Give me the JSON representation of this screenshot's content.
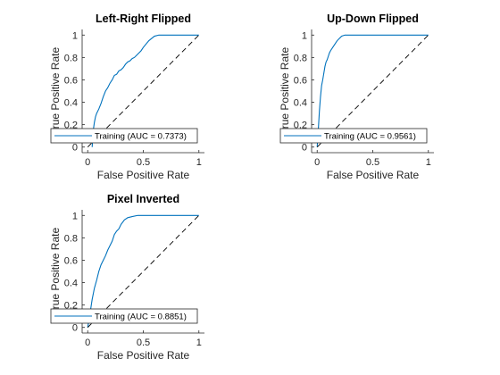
{
  "colors": {
    "roc_line": "#0072bd",
    "chance_line": "#000000",
    "axis": "#262626",
    "background": "#ffffff"
  },
  "chart_data": [
    {
      "type": "line",
      "title": "Left-Right Flipped",
      "xlabel": "False Positive Rate",
      "ylabel": "True Positive Rate",
      "xlim": [
        -0.05,
        1.05
      ],
      "ylim": [
        -0.05,
        1.05
      ],
      "xticks": [
        0,
        0.5,
        1
      ],
      "xtick_labels": [
        "0",
        "0.5",
        "1"
      ],
      "yticks": [
        0,
        0.2,
        0.4,
        0.6,
        0.8,
        1
      ],
      "ytick_labels": [
        "0",
        "0.2",
        "0.4",
        "0.6",
        "0.8",
        "1"
      ],
      "grid": false,
      "legend_position": "bottom",
      "series": [
        {
          "name": "Training (AUC = 0.7373)",
          "style": "solid",
          "x": [
            0.04,
            0.05,
            0.06,
            0.07,
            0.08,
            0.1,
            0.12,
            0.14,
            0.16,
            0.18,
            0.2,
            0.22,
            0.24,
            0.26,
            0.28,
            0.3,
            0.32,
            0.34,
            0.36,
            0.38,
            0.4,
            0.42,
            0.44,
            0.46,
            0.48,
            0.5,
            0.55,
            0.6,
            0.64,
            1.0
          ],
          "y": [
            0.0,
            0.15,
            0.22,
            0.27,
            0.3,
            0.34,
            0.39,
            0.45,
            0.5,
            0.53,
            0.57,
            0.6,
            0.64,
            0.65,
            0.68,
            0.69,
            0.71,
            0.74,
            0.76,
            0.77,
            0.79,
            0.8,
            0.82,
            0.84,
            0.86,
            0.89,
            0.95,
            0.99,
            1.0,
            1.0
          ]
        },
        {
          "style": "dashed",
          "x": [
            0,
            1
          ],
          "y": [
            0,
            1
          ]
        }
      ]
    },
    {
      "type": "line",
      "title": "Up-Down Flipped",
      "xlabel": "False Positive Rate",
      "ylabel": "True Positive Rate",
      "xlim": [
        -0.05,
        1.05
      ],
      "ylim": [
        -0.05,
        1.05
      ],
      "xticks": [
        0,
        0.5,
        1
      ],
      "xtick_labels": [
        "0",
        "0.5",
        "1"
      ],
      "yticks": [
        0,
        0.2,
        0.4,
        0.6,
        0.8,
        1
      ],
      "ytick_labels": [
        "0",
        "0.2",
        "0.4",
        "0.6",
        "0.8",
        "1"
      ],
      "grid": false,
      "legend_position": "bottom",
      "series": [
        {
          "name": "Training (AUC = 0.9561)",
          "style": "solid",
          "x": [
            0.0,
            0.01,
            0.02,
            0.03,
            0.04,
            0.05,
            0.06,
            0.07,
            0.08,
            0.09,
            0.1,
            0.11,
            0.12,
            0.14,
            0.16,
            0.18,
            0.2,
            0.22,
            0.25,
            0.3,
            0.4,
            1.0
          ],
          "y": [
            0.0,
            0.15,
            0.32,
            0.45,
            0.55,
            0.6,
            0.66,
            0.72,
            0.76,
            0.78,
            0.81,
            0.84,
            0.86,
            0.89,
            0.92,
            0.95,
            0.97,
            0.99,
            1.0,
            1.0,
            1.0,
            1.0
          ]
        },
        {
          "style": "dashed",
          "x": [
            0,
            1
          ],
          "y": [
            0,
            1
          ]
        }
      ]
    },
    {
      "type": "line",
      "title": "Pixel Inverted",
      "xlabel": "False Positive Rate",
      "ylabel": "True Positive Rate",
      "xlim": [
        -0.05,
        1.05
      ],
      "ylim": [
        -0.05,
        1.05
      ],
      "xticks": [
        0,
        0.5,
        1
      ],
      "xtick_labels": [
        "0",
        "0.5",
        "1"
      ],
      "yticks": [
        0,
        0.2,
        0.4,
        0.6,
        0.8,
        1
      ],
      "ytick_labels": [
        "0",
        "0.2",
        "0.4",
        "0.6",
        "0.8",
        "1"
      ],
      "grid": false,
      "legend_position": "bottom",
      "series": [
        {
          "name": "Training (AUC = 0.8851)",
          "style": "solid",
          "x": [
            0.0,
            0.02,
            0.04,
            0.06,
            0.08,
            0.1,
            0.12,
            0.14,
            0.16,
            0.18,
            0.2,
            0.22,
            0.24,
            0.26,
            0.28,
            0.3,
            0.33,
            0.36,
            0.4,
            0.45,
            0.5,
            1.0
          ],
          "y": [
            0.0,
            0.12,
            0.25,
            0.35,
            0.42,
            0.5,
            0.56,
            0.6,
            0.64,
            0.69,
            0.73,
            0.77,
            0.83,
            0.86,
            0.88,
            0.92,
            0.96,
            0.98,
            0.99,
            1.0,
            1.0,
            1.0
          ]
        },
        {
          "style": "dashed",
          "x": [
            0,
            1
          ],
          "y": [
            0,
            1
          ]
        }
      ]
    }
  ]
}
